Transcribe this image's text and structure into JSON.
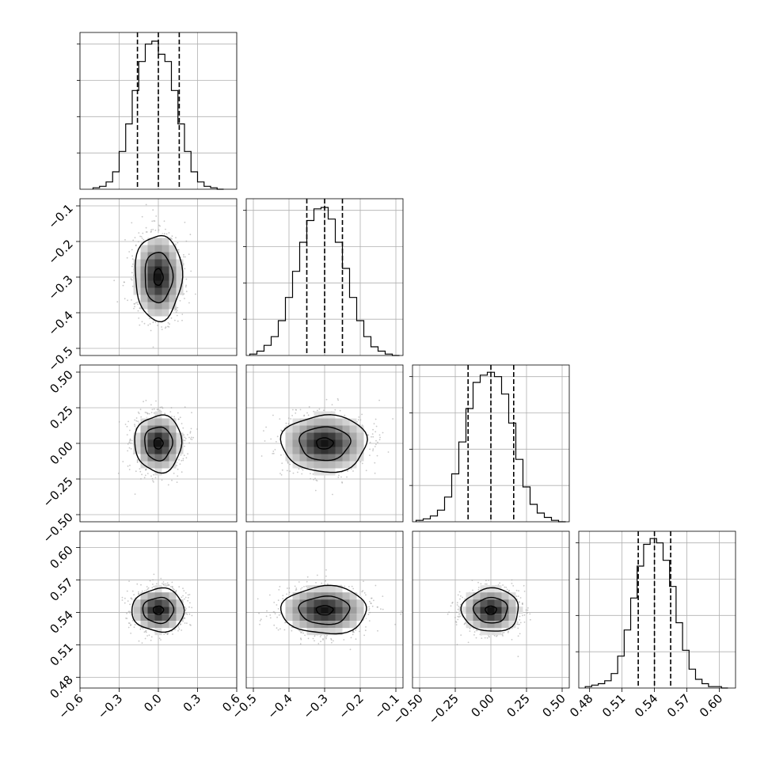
{
  "figure": {
    "type": "corner-plot",
    "grid": true,
    "diagonal_quantiles_shown": [
      0.16,
      0.5,
      0.84
    ]
  },
  "chart_data": [
    {
      "type": "histogram",
      "panel": "diag-0",
      "bin_edges": [
        -0.5,
        -0.45,
        -0.4,
        -0.35,
        -0.3,
        -0.25,
        -0.2,
        -0.15,
        -0.1,
        -0.05,
        0,
        0.05,
        0.1,
        0.15,
        0.2,
        0.25,
        0.3,
        0.35,
        0.4,
        0.45,
        0.5
      ],
      "counts": [
        1,
        2,
        5,
        12,
        26,
        45,
        68,
        88,
        100,
        102,
        93,
        88,
        68,
        45,
        26,
        12,
        5,
        2,
        1,
        0
      ],
      "quantile_lines": [
        -0.16,
        0.0,
        0.16
      ],
      "xlim": [
        -0.6,
        0.6
      ],
      "ylim": [
        0,
        108
      ]
    },
    {
      "type": "histogram",
      "panel": "diag-1",
      "bin_edges": [
        -0.51,
        -0.49,
        -0.47,
        -0.45,
        -0.43,
        -0.41,
        -0.39,
        -0.37,
        -0.35,
        -0.33,
        -0.31,
        -0.29,
        -0.27,
        -0.25,
        -0.23,
        -0.21,
        -0.19,
        -0.17,
        -0.15,
        -0.13,
        -0.11,
        -0.09
      ],
      "counts": [
        1,
        3,
        7,
        13,
        24,
        40,
        58,
        78,
        93,
        101,
        102,
        94,
        78,
        60,
        40,
        24,
        13,
        6,
        3,
        1,
        0
      ],
      "quantile_lines": [
        -0.35,
        -0.3,
        -0.25
      ],
      "xlim": [
        -0.52,
        -0.08
      ],
      "ylim": [
        0,
        108
      ]
    },
    {
      "type": "histogram",
      "panel": "diag-2",
      "bin_edges": [
        -0.525,
        -0.475,
        -0.425,
        -0.375,
        -0.325,
        -0.275,
        -0.225,
        -0.175,
        -0.125,
        -0.075,
        -0.025,
        0.025,
        0.075,
        0.125,
        0.175,
        0.225,
        0.275,
        0.325,
        0.375,
        0.425,
        0.475,
        0.525
      ],
      "counts": [
        1,
        2,
        4,
        8,
        17,
        33,
        55,
        78,
        96,
        101,
        103,
        100,
        88,
        68,
        43,
        24,
        12,
        6,
        3,
        1,
        0
      ],
      "quantile_lines": [
        -0.16,
        0.0,
        0.16
      ],
      "xlim": [
        -0.55,
        0.55
      ],
      "ylim": [
        0,
        108
      ]
    },
    {
      "type": "histogram",
      "panel": "diag-3",
      "bin_edges": [
        0.476,
        0.482,
        0.488,
        0.494,
        0.5,
        0.506,
        0.512,
        0.518,
        0.524,
        0.53,
        0.536,
        0.542,
        0.548,
        0.554,
        0.56,
        0.566,
        0.572,
        0.578,
        0.584,
        0.59,
        0.596,
        0.602,
        0.608
      ],
      "counts": [
        1,
        2,
        3,
        5,
        10,
        22,
        40,
        62,
        84,
        99,
        103,
        100,
        88,
        70,
        45,
        26,
        13,
        6,
        3,
        1,
        1,
        0
      ],
      "quantile_lines": [
        0.525,
        0.54,
        0.555
      ],
      "xlim": [
        0.47,
        0.615
      ],
      "ylim": [
        0,
        108
      ]
    },
    {
      "type": "scatter-density",
      "panel": "pair-1-0",
      "center": [
        0.0,
        -0.3
      ],
      "sigma": [
        0.09,
        0.06
      ],
      "xlim": [
        -0.6,
        0.6
      ],
      "ylim": [
        -0.52,
        -0.08
      ]
    },
    {
      "type": "scatter-density",
      "panel": "pair-2-0",
      "center": [
        0.0,
        0.0
      ],
      "sigma": [
        0.09,
        0.1
      ],
      "xlim": [
        -0.6,
        0.6
      ],
      "ylim": [
        -0.55,
        0.55
      ]
    },
    {
      "type": "scatter-density",
      "panel": "pair-3-0",
      "center": [
        0.0,
        0.542
      ],
      "sigma": [
        0.1,
        0.01
      ],
      "xlim": [
        -0.6,
        0.6
      ],
      "ylim": [
        0.47,
        0.615
      ]
    },
    {
      "type": "scatter-density",
      "panel": "pair-2-1",
      "center": [
        -0.3,
        0.0
      ],
      "sigma": [
        0.06,
        0.1
      ],
      "xlim": [
        -0.52,
        -0.08
      ],
      "ylim": [
        -0.55,
        0.55
      ]
    },
    {
      "type": "scatter-density",
      "panel": "pair-3-1",
      "center": [
        -0.3,
        0.542
      ],
      "sigma": [
        0.06,
        0.011
      ],
      "xlim": [
        -0.52,
        -0.08
      ],
      "ylim": [
        0.47,
        0.615
      ]
    },
    {
      "type": "scatter-density",
      "panel": "pair-3-2",
      "center": [
        0.0,
        0.542
      ],
      "sigma": [
        0.1,
        0.01
      ],
      "xlim": [
        -0.55,
        0.55
      ],
      "ylim": [
        0.47,
        0.615
      ]
    }
  ],
  "axes": {
    "x_ticks": [
      {
        "panel": "x-axis-col-0",
        "values": [
          -0.6,
          -0.3,
          0.0,
          0.3,
          0.6
        ],
        "labels": [
          "−0.6",
          "−0.3",
          "0.0",
          "0.3",
          "0.6"
        ]
      },
      {
        "panel": "x-axis-col-1",
        "values": [
          -0.5,
          -0.4,
          -0.3,
          -0.2,
          -0.1
        ],
        "labels": [
          "−0.5",
          "−0.4",
          "−0.3",
          "−0.2",
          "−0.1"
        ]
      },
      {
        "panel": "x-axis-col-2",
        "values": [
          -0.5,
          -0.25,
          0.0,
          0.25,
          0.5
        ],
        "labels": [
          "−0.50",
          "−0.25",
          "0.00",
          "0.25",
          "0.50"
        ]
      },
      {
        "panel": "x-axis-col-3",
        "values": [
          0.48,
          0.51,
          0.54,
          0.57,
          0.6
        ],
        "labels": [
          "0.48",
          "0.51",
          "0.54",
          "0.57",
          "0.60"
        ]
      }
    ],
    "y_ticks": [
      {
        "panel": "y-axis-row-1",
        "values": [
          -0.1,
          -0.2,
          -0.3,
          -0.4,
          -0.5
        ],
        "labels": [
          "−0.1",
          "−0.2",
          "−0.3",
          "−0.4",
          "−0.5"
        ]
      },
      {
        "panel": "y-axis-row-2",
        "values": [
          0.5,
          0.25,
          0.0,
          -0.25,
          -0.5
        ],
        "labels": [
          "0.50",
          "0.25",
          "0.00",
          "−0.25",
          "−0.50"
        ]
      },
      {
        "panel": "y-axis-row-3",
        "values": [
          0.6,
          0.57,
          0.54,
          0.51,
          0.48
        ],
        "labels": [
          "0.60",
          "0.57",
          "0.54",
          "0.51",
          "0.48"
        ]
      }
    ]
  }
}
